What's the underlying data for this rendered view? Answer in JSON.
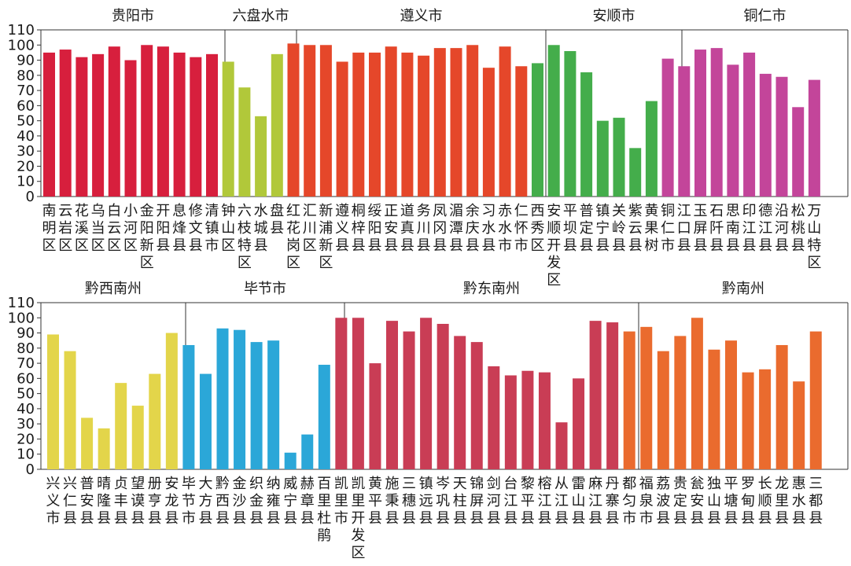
{
  "chart_data": {
    "type": "bar",
    "ylim": [
      0,
      110
    ],
    "yticks": [
      0,
      10,
      20,
      30,
      40,
      50,
      60,
      70,
      80,
      90,
      100,
      110
    ],
    "grid": false,
    "legend": "none",
    "rows": [
      {
        "groups": [
          {
            "name": "贵阳市",
            "color": "#d71f3d",
            "categories": [
              "南明区",
              "云岩区",
              "花溪区",
              "乌当区",
              "白云区",
              "小河区",
              "金阳新区",
              "开阳县",
              "息烽县",
              "修文县",
              "清镇市"
            ],
            "values": [
              95,
              97,
              92,
              94,
              99,
              90,
              100,
              99,
              95,
              92,
              94
            ]
          },
          {
            "name": "六盘水市",
            "color": "#b1c83a",
            "categories": [
              "钟山区",
              "六枝特区",
              "水城县",
              "盘县"
            ],
            "values": [
              89,
              72,
              53,
              94
            ]
          },
          {
            "name": "遵义市",
            "color": "#e5472a",
            "categories": [
              "红花岗区",
              "汇川区",
              "新浦新区",
              "遵义县",
              "桐梓县",
              "绥阳县",
              "正安县",
              "道真县",
              "务川县",
              "凤冈县",
              "湄潭县",
              "余庆县",
              "习水县",
              "赤水市",
              "仁怀市"
            ],
            "values": [
              101,
              100,
              100,
              89,
              95,
              95,
              99,
              95,
              93,
              98,
              98,
              100,
              85,
              99,
              86
            ]
          },
          {
            "name": "安顺市",
            "color": "#44ad4b",
            "categories": [
              "西秀区",
              "安顺开发区",
              "平坝县",
              "普定县",
              "镇宁县",
              "关岭县",
              "紫云县",
              "黄果树"
            ],
            "values": [
              88,
              100,
              96,
              82,
              50,
              52,
              32,
              63
            ]
          },
          {
            "name": "铜仁市",
            "color": "#c3459a",
            "categories": [
              "铜仁市",
              "江口县",
              "玉屏县",
              "石阡县",
              "思南县",
              "印江县",
              "德江县",
              "沿河县",
              "松桃县",
              "万山特区"
            ],
            "values": [
              91,
              86,
              97,
              98,
              87,
              95,
              81,
              79,
              59,
              77
            ]
          }
        ]
      },
      {
        "groups": [
          {
            "name": "黔西南州",
            "color": "#e3d54a",
            "categories": [
              "兴义市",
              "兴仁县",
              "普安县",
              "晴隆县",
              "贞丰县",
              "望谟县",
              "册亨县",
              "安龙县"
            ],
            "values": [
              89,
              78,
              34,
              27,
              57,
              42,
              63,
              90
            ]
          },
          {
            "name": "毕节市",
            "color": "#2ba7d8",
            "categories": [
              "毕节市",
              "大方县",
              "黔西县",
              "金沙县",
              "织金县",
              "纳雍县",
              "威宁县",
              "赫章县",
              "百里杜鹃"
            ],
            "values": [
              82,
              63,
              93,
              92,
              84,
              85,
              11,
              23,
              69
            ]
          },
          {
            "name": "黔东南州",
            "color": "#c93d55",
            "categories": [
              "凯里市",
              "凯里开发区",
              "黄平县",
              "施秉县",
              "三穗县",
              "镇远县",
              "岑巩县",
              "天柱县",
              "锦屏县",
              "剑河县",
              "台江县",
              "黎平县",
              "榕江县",
              "从江县",
              "雷山县",
              "麻江县",
              "丹寨县"
            ],
            "values": [
              100,
              100,
              70,
              98,
              91,
              100,
              96,
              88,
              84,
              68,
              62,
              65,
              64,
              31,
              60,
              98,
              97
            ]
          },
          {
            "name": "黔南州",
            "color": "#ea6b2e",
            "categories": [
              "都匀市",
              "福泉市",
              "荔波县",
              "贵定县",
              "瓮安县",
              "独山县",
              "平塘县",
              "罗甸县",
              "长顺县",
              "龙里县",
              "惠水县",
              "三都县"
            ],
            "values": [
              91,
              94,
              78,
              88,
              100,
              79,
              85,
              64,
              66,
              82,
              58,
              91
            ]
          }
        ]
      }
    ]
  }
}
